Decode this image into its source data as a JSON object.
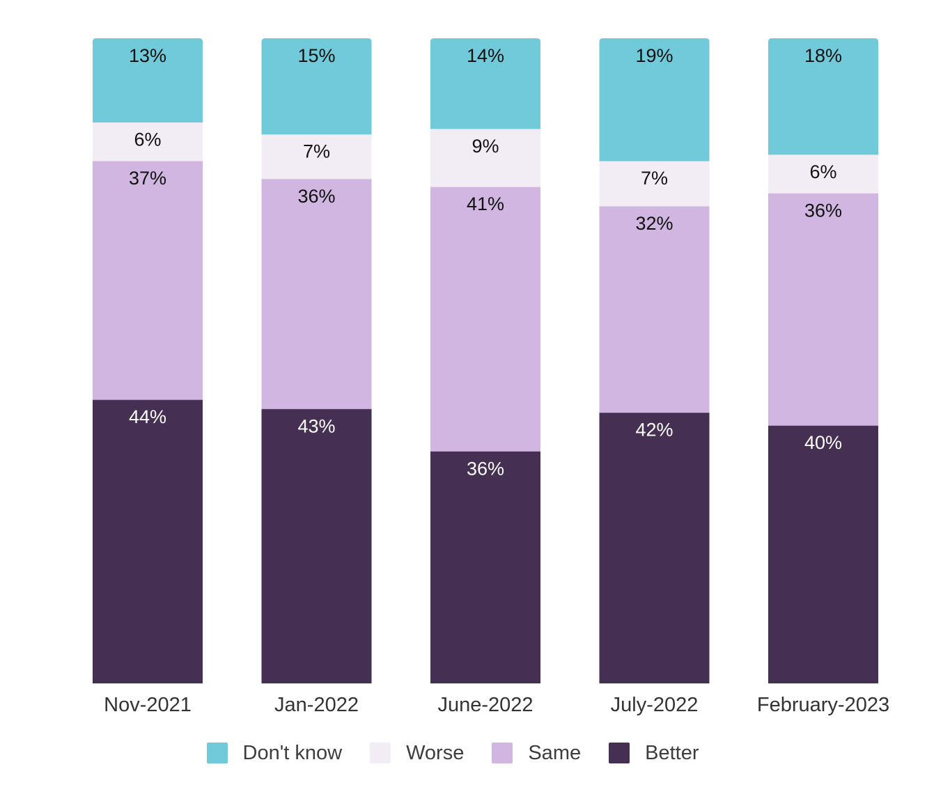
{
  "chart_data": {
    "type": "bar",
    "stacked": true,
    "categories": [
      "Nov-2021",
      "Jan-2022",
      "June-2022",
      "July-2022",
      "February-2023"
    ],
    "series": [
      {
        "name": "Better",
        "color": "#452f52",
        "values": [
          44,
          43,
          36,
          42,
          40
        ],
        "labels": [
          "44%",
          "43%",
          "36%",
          "42%",
          "40%"
        ]
      },
      {
        "name": "Same",
        "color": "#d0b6e0",
        "values": [
          37,
          36,
          41,
          32,
          36
        ],
        "labels": [
          "37%",
          "36%",
          "41%",
          "32%",
          "36%"
        ]
      },
      {
        "name": "Worse",
        "color": "#f2ecf4",
        "values": [
          6,
          7,
          9,
          7,
          6
        ],
        "labels": [
          "6%",
          "7%",
          "9%",
          "7%",
          "6%"
        ]
      },
      {
        "name": "Don't know",
        "color": "#71cad9",
        "values": [
          13,
          15,
          14,
          19,
          18
        ],
        "labels": [
          "13%",
          "15%",
          "14%",
          "19%",
          "18%"
        ]
      }
    ],
    "legend": [
      "Don't know",
      "Worse",
      "Same",
      "Better"
    ],
    "legend_position": "bottom",
    "ylim": [
      0,
      100
    ],
    "grid": false,
    "title": "",
    "xlabel": "",
    "ylabel": ""
  }
}
